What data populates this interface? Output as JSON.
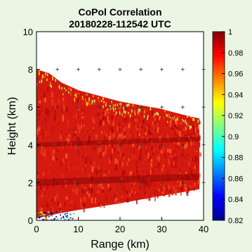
{
  "chart_data": {
    "type": "heatmap",
    "title": "CoPol Correlation",
    "subtitle": "20180228-112542 UTC",
    "xlabel": "Range (km)",
    "ylabel": "Height (km)",
    "xlim": [
      0,
      40
    ],
    "ylim": [
      0,
      10
    ],
    "x_ticks": [
      "0",
      "10",
      "20",
      "30",
      "40"
    ],
    "y_ticks": [
      "0",
      "2",
      "4",
      "6",
      "8",
      "10"
    ],
    "colorbar": {
      "range": [
        0.82,
        1
      ],
      "ticks": [
        "0.82",
        "0.84",
        "0.86",
        "0.88",
        "0.9",
        "0.92",
        "0.94",
        "0.96",
        "0.98",
        "1"
      ],
      "colormap": "jet"
    },
    "grid_markers": "plus",
    "echo_region": {
      "top_height_km": [
        [
          0,
          8.0
        ],
        [
          3,
          7.8
        ],
        [
          6,
          7.3
        ],
        [
          10,
          6.9
        ],
        [
          15,
          6.6
        ],
        [
          20,
          6.3
        ],
        [
          25,
          6.1
        ],
        [
          30,
          5.9
        ],
        [
          35,
          5.6
        ],
        [
          39,
          5.4
        ]
      ],
      "bottom_height_km": [
        [
          0,
          0.1
        ],
        [
          5,
          0.35
        ],
        [
          10,
          0.55
        ],
        [
          20,
          0.9
        ],
        [
          30,
          1.3
        ],
        [
          39,
          1.65
        ]
      ],
      "typical_value": 0.97
    }
  }
}
